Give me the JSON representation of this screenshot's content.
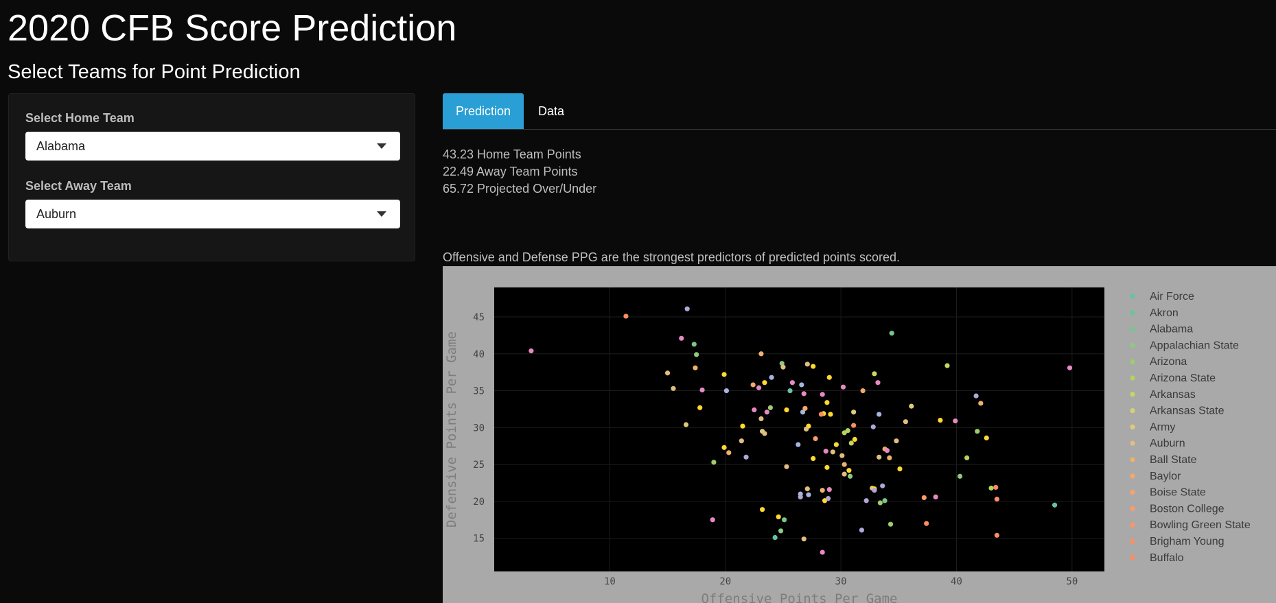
{
  "header": {
    "title": "2020 CFB Score Prediction",
    "subtitle": "Select Teams for Point Prediction"
  },
  "sidebar": {
    "home_label": "Select Home Team",
    "home_value": "Alabama",
    "away_label": "Select Away Team",
    "away_value": "Auburn"
  },
  "tabs": [
    {
      "label": "Prediction",
      "active": true
    },
    {
      "label": "Data",
      "active": false
    }
  ],
  "prediction": {
    "home": "43.23 Home Team Points",
    "away": "22.49 Away Team Points",
    "total": "65.72 Projected Over/Under"
  },
  "note": "Offensive and Defense PPG are the strongest predictors of predicted points scored.",
  "colors": {
    "accent": "#2a9fd6",
    "plot_bg": "#000000",
    "paper_bg": "#a9a9a9"
  },
  "chart_data": {
    "type": "scatter",
    "xlabel": "Offensive Points Per Game",
    "ylabel": "Defensive Points Per Game",
    "xlim": [
      0,
      52.8
    ],
    "ylim": [
      10.5,
      49
    ],
    "xticks": [
      10,
      20,
      30,
      40,
      50
    ],
    "yticks": [
      15,
      20,
      25,
      30,
      35,
      40,
      45
    ],
    "grid": true,
    "legend_position": "right",
    "legend": [
      {
        "name": "Air Force",
        "color": "#66c2a5"
      },
      {
        "name": "Akron",
        "color": "#6bc39a"
      },
      {
        "name": "Alabama",
        "color": "#78c68c"
      },
      {
        "name": "Appalachian State",
        "color": "#8ec97c"
      },
      {
        "name": "Arizona",
        "color": "#9fcc6d"
      },
      {
        "name": "Arizona State",
        "color": "#b4d35e"
      },
      {
        "name": "Arkansas",
        "color": "#c6d760"
      },
      {
        "name": "Arkansas State",
        "color": "#d5d36f"
      },
      {
        "name": "Army",
        "color": "#ddcb7a"
      },
      {
        "name": "Auburn",
        "color": "#e1be80"
      },
      {
        "name": "Ball State",
        "color": "#f0b16b"
      },
      {
        "name": "Baylor",
        "color": "#f5a86a"
      },
      {
        "name": "Boise State",
        "color": "#f8a36f"
      },
      {
        "name": "Boston College",
        "color": "#fb9c6a"
      },
      {
        "name": "Bowling Green State",
        "color": "#fc9665"
      },
      {
        "name": "Brigham Young",
        "color": "#fc8f63"
      },
      {
        "name": "Buffalo",
        "color": "#fc8d62"
      }
    ],
    "points": [
      [
        3.2,
        40.4,
        "#e78ac3"
      ],
      [
        11.4,
        45.1,
        "#fc8d62"
      ],
      [
        16.7,
        46.1,
        "#b3a6d6"
      ],
      [
        17.3,
        41.3,
        "#78c68c"
      ],
      [
        16.2,
        42.1,
        "#e78ac3"
      ],
      [
        17.5,
        39.9,
        "#8ec97c"
      ],
      [
        15.0,
        37.4,
        "#e1be80"
      ],
      [
        17.4,
        38.1,
        "#f0b16b"
      ],
      [
        19.9,
        37.2,
        "#ffd92f"
      ],
      [
        15.5,
        35.3,
        "#e1be80"
      ],
      [
        18.0,
        35.1,
        "#e78ac3"
      ],
      [
        20.1,
        35.0,
        "#a6b4e0"
      ],
      [
        17.8,
        32.7,
        "#ffd92f"
      ],
      [
        16.6,
        30.4,
        "#ddcb7a"
      ],
      [
        21.5,
        30.2,
        "#ffd92f"
      ],
      [
        21.4,
        28.2,
        "#e1be80"
      ],
      [
        19.9,
        27.3,
        "#ffd92f"
      ],
      [
        20.3,
        26.6,
        "#f0b16b"
      ],
      [
        19.0,
        25.3,
        "#9fcc6d"
      ],
      [
        21.8,
        26.0,
        "#b3a6d6"
      ],
      [
        23.1,
        40.0,
        "#f0b16b"
      ],
      [
        24.0,
        36.8,
        "#a6b4e0"
      ],
      [
        24.9,
        38.7,
        "#8ec97c"
      ],
      [
        25.0,
        38.2,
        "#e1be80"
      ],
      [
        23.4,
        36.1,
        "#ffd92f"
      ],
      [
        22.4,
        35.8,
        "#f5a86a"
      ],
      [
        22.9,
        35.4,
        "#e78ac3"
      ],
      [
        22.5,
        32.4,
        "#e78ac3"
      ],
      [
        23.6,
        32.1,
        "#e78ac3"
      ],
      [
        23.9,
        32.7,
        "#9fcc6d"
      ],
      [
        23.1,
        31.2,
        "#e1be80"
      ],
      [
        23.2,
        29.5,
        "#ddcb7a"
      ],
      [
        23.4,
        29.2,
        "#e1be80"
      ],
      [
        25.3,
        32.4,
        "#ffd92f"
      ],
      [
        25.8,
        36.1,
        "#e78ac3"
      ],
      [
        25.6,
        35.0,
        "#66c2a5"
      ],
      [
        26.6,
        35.8,
        "#a6b4e0"
      ],
      [
        26.8,
        34.6,
        "#e78ac3"
      ],
      [
        27.1,
        38.6,
        "#e1be80"
      ],
      [
        27.6,
        38.3,
        "#ffd92f"
      ],
      [
        26.7,
        32.1,
        "#a6b4e0"
      ],
      [
        26.9,
        32.6,
        "#f5a86a"
      ],
      [
        27.2,
        30.2,
        "#ffd92f"
      ],
      [
        27.0,
        29.8,
        "#e1be80"
      ],
      [
        26.3,
        27.7,
        "#a6b4e0"
      ],
      [
        27.8,
        28.5,
        "#fb9c6a"
      ],
      [
        28.5,
        31.9,
        "#ffd92f"
      ],
      [
        28.3,
        31.8,
        "#fc8f63"
      ],
      [
        28.4,
        34.5,
        "#e78ac3"
      ],
      [
        28.8,
        33.4,
        "#ffd92f"
      ],
      [
        29.0,
        36.8,
        "#ffd92f"
      ],
      [
        29.1,
        31.8,
        "#ffd92f"
      ],
      [
        28.7,
        26.8,
        "#e78ac3"
      ],
      [
        29.3,
        26.7,
        "#e1be80"
      ],
      [
        29.6,
        27.7,
        "#ffd92f"
      ],
      [
        30.2,
        35.5,
        "#e78ac3"
      ],
      [
        30.3,
        29.3,
        "#b4d35e"
      ],
      [
        30.6,
        29.6,
        "#b4d35e"
      ],
      [
        31.1,
        32.1,
        "#ddcb7a"
      ],
      [
        30.9,
        27.9,
        "#c6d760"
      ],
      [
        31.2,
        28.4,
        "#ffd92f"
      ],
      [
        31.1,
        30.3,
        "#fc8d62"
      ],
      [
        30.1,
        26.2,
        "#e1be80"
      ],
      [
        30.3,
        25.0,
        "#f0b16b"
      ],
      [
        30.7,
        24.2,
        "#ffd92f"
      ],
      [
        30.8,
        23.4,
        "#8ec97c"
      ],
      [
        30.3,
        23.7,
        "#e1be80"
      ],
      [
        28.8,
        24.6,
        "#ffd92f"
      ],
      [
        25.3,
        24.7,
        "#e1be80"
      ],
      [
        27.6,
        25.8,
        "#ffd92f"
      ],
      [
        27.1,
        21.7,
        "#e1be80"
      ],
      [
        26.5,
        21.0,
        "#a6b4e0"
      ],
      [
        26.5,
        20.6,
        "#b3a6d6"
      ],
      [
        27.2,
        20.9,
        "#a6b4e0"
      ],
      [
        28.4,
        21.5,
        "#f0b16b"
      ],
      [
        28.6,
        20.1,
        "#ffd92f"
      ],
      [
        28.9,
        20.4,
        "#b3a6d6"
      ],
      [
        29.0,
        21.6,
        "#e78ac3"
      ],
      [
        32.2,
        20.1,
        "#b3a6d6"
      ],
      [
        32.7,
        21.8,
        "#e1be80"
      ],
      [
        32.9,
        21.7,
        "#ffd92f"
      ],
      [
        32.9,
        21.5,
        "#b3a6d6"
      ],
      [
        33.6,
        22.1,
        "#b3a6d6"
      ],
      [
        33.4,
        19.8,
        "#9fcc6d"
      ],
      [
        33.8,
        20.1,
        "#78c68c"
      ],
      [
        34.4,
        42.8,
        "#78c68c"
      ],
      [
        32.9,
        37.3,
        "#c6d760"
      ],
      [
        33.2,
        36.1,
        "#e78ac3"
      ],
      [
        31.9,
        35.0,
        "#f5a86a"
      ],
      [
        33.3,
        31.8,
        "#a6b4e0"
      ],
      [
        32.8,
        30.1,
        "#b3a6d6"
      ],
      [
        34.8,
        28.2,
        "#e1be80"
      ],
      [
        33.8,
        27.1,
        "#f5a86a"
      ],
      [
        34.0,
        26.9,
        "#e78ac3"
      ],
      [
        33.3,
        26.0,
        "#e1be80"
      ],
      [
        34.2,
        25.9,
        "#f0b16b"
      ],
      [
        35.1,
        24.4,
        "#ffd92f"
      ],
      [
        35.6,
        30.8,
        "#e1be80"
      ],
      [
        36.1,
        32.9,
        "#ddcb7a"
      ],
      [
        34.3,
        16.9,
        "#9fcc6d"
      ],
      [
        31.8,
        16.1,
        "#b3a6d6"
      ],
      [
        37.2,
        20.5,
        "#fb9c6a"
      ],
      [
        38.2,
        20.6,
        "#e78ac3"
      ],
      [
        37.4,
        17.0,
        "#fc8f63"
      ],
      [
        39.2,
        38.4,
        "#c6d760"
      ],
      [
        38.6,
        31.0,
        "#ffd92f"
      ],
      [
        39.9,
        30.9,
        "#e78ac3"
      ],
      [
        40.3,
        23.4,
        "#8ec97c"
      ],
      [
        40.9,
        25.9,
        "#b4d35e"
      ],
      [
        41.7,
        34.3,
        "#b3a6d6"
      ],
      [
        42.1,
        33.3,
        "#f0b16b"
      ],
      [
        41.8,
        29.5,
        "#9fcc6d"
      ],
      [
        42.6,
        28.6,
        "#ffd92f"
      ],
      [
        43.0,
        21.8,
        "#b4d35e"
      ],
      [
        43.4,
        21.9,
        "#fc8d62"
      ],
      [
        43.5,
        20.3,
        "#fc8f63"
      ],
      [
        43.5,
        15.4,
        "#fc8d62"
      ],
      [
        48.5,
        19.5,
        "#66c2a5"
      ],
      [
        49.8,
        38.1,
        "#e78ac3"
      ],
      [
        23.2,
        18.9,
        "#ffd92f"
      ],
      [
        24.6,
        17.9,
        "#ffd92f"
      ],
      [
        25.1,
        17.5,
        "#78c68c"
      ],
      [
        24.8,
        16.0,
        "#8ec97c"
      ],
      [
        24.3,
        15.1,
        "#66c2a5"
      ],
      [
        26.8,
        14.9,
        "#e1be80"
      ],
      [
        28.4,
        13.1,
        "#e78ac3"
      ],
      [
        18.9,
        17.5,
        "#e78ac3"
      ]
    ]
  }
}
